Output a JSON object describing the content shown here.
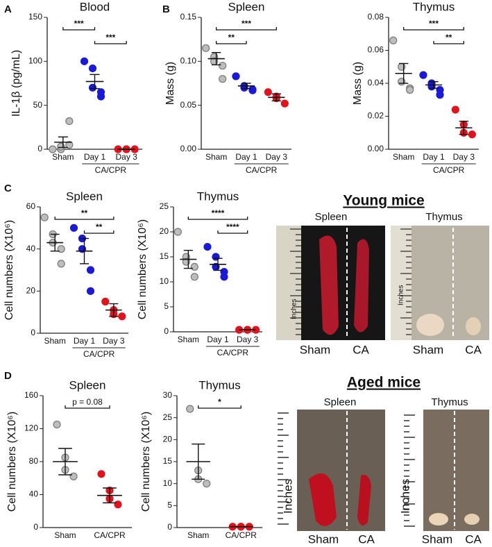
{
  "panel_labels": [
    "A",
    "B",
    "C",
    "D"
  ],
  "chart_data": [
    {
      "type": "dot",
      "title": "Blood",
      "y_label": "IL-1β (pg/mL)",
      "categories": [
        "Sham",
        "Day 1",
        "Day 3"
      ],
      "group_label": "CA/CPR",
      "colors": [
        "#bdbdbd",
        "#1a1ad6",
        "#e0141e"
      ],
      "points": [
        [
          0,
          0,
          3,
          5,
          32
        ],
        [
          100,
          92,
          70,
          65,
          60
        ],
        [
          0,
          0,
          0,
          0
        ]
      ],
      "means": [
        8,
        77,
        0
      ],
      "sems": [
        6,
        8,
        0
      ],
      "ylim": [
        0,
        150
      ],
      "yticks": [
        0,
        50,
        100,
        150
      ],
      "brackets": [
        {
          "between": [
            "Sham",
            "Day 1"
          ],
          "label": "***"
        },
        {
          "between": [
            "Day 1",
            "Day 3"
          ],
          "label": "***"
        }
      ]
    },
    {
      "type": "dot",
      "title": "Spleen",
      "y_label": "Mass (g)",
      "categories": [
        "Sham",
        "Day 1",
        "Day 3"
      ],
      "group_label": "CA/CPR",
      "colors": [
        "#bdbdbd",
        "#1a1ad6",
        "#e0141e"
      ],
      "points": [
        [
          0.115,
          0.105,
          0.1,
          0.095,
          0.08
        ],
        [
          0.083,
          0.072,
          0.07,
          0.068,
          0.067
        ],
        [
          0.065,
          0.06,
          0.058,
          0.052
        ]
      ],
      "means": [
        0.103,
        0.072,
        0.059
      ],
      "sems": [
        0.007,
        0.003,
        0.004
      ],
      "ylim": [
        0,
        0.15
      ],
      "yticks": [
        {
          "value": 0,
          "label": "0.00"
        },
        {
          "value": 0.05,
          "label": "0.05"
        },
        {
          "value": 0.1,
          "label": "0.10"
        },
        {
          "value": 0.15,
          "label": "0.15"
        }
      ],
      "brackets": [
        {
          "between": [
            "Sham",
            "Day 3"
          ],
          "label": "***"
        },
        {
          "between": [
            "Sham",
            "Day 1"
          ],
          "label": "**"
        }
      ]
    },
    {
      "type": "dot",
      "title": "Thymus",
      "y_label": "Mass (g)",
      "categories": [
        "Sham",
        "Day 1",
        "Day 3"
      ],
      "group_label": "CA/CPR",
      "colors": [
        "#bdbdbd",
        "#1a1ad6",
        "#e0141e"
      ],
      "points": [
        [
          0.066,
          0.05,
          0.041,
          0.037,
          0.036
        ],
        [
          0.045,
          0.04,
          0.038,
          0.036,
          0.033
        ],
        [
          0.024,
          0.015,
          0.01,
          0.009
        ]
      ],
      "means": [
        0.046,
        0.039,
        0.013
      ],
      "sems": [
        0.006,
        0.002,
        0.004
      ],
      "ylim": [
        0,
        0.08
      ],
      "yticks": [
        {
          "value": 0,
          "label": "0.00"
        },
        {
          "value": 0.02,
          "label": "0.02"
        },
        {
          "value": 0.04,
          "label": "0.04"
        },
        {
          "value": 0.06,
          "label": "0.06"
        },
        {
          "value": 0.08,
          "label": "0.08"
        }
      ],
      "brackets": [
        {
          "between": [
            "Sham",
            "Day 3"
          ],
          "label": "***"
        },
        {
          "between": [
            "Day 1",
            "Day 3"
          ],
          "label": "**"
        }
      ]
    },
    {
      "type": "dot",
      "title": "Spleen",
      "y_label": "Cell numbers (X10⁶)",
      "categories": [
        "Sham",
        "Day 1",
        "Day 3"
      ],
      "group_label": "CA/CPR",
      "colors": [
        "#bdbdbd",
        "#1a1ad6",
        "#e0141e"
      ],
      "points": [
        [
          55,
          47,
          43,
          40,
          33
        ],
        [
          50,
          45,
          40,
          30,
          20
        ],
        [
          15,
          11,
          9,
          8
        ]
      ],
      "means": [
        43,
        39,
        11
      ],
      "sems": [
        4,
        6,
        3
      ],
      "ylim": [
        0,
        60
      ],
      "yticks": [
        0,
        20,
        40,
        60
      ],
      "brackets": [
        {
          "between": [
            "Sham",
            "Day 3"
          ],
          "label": "**"
        },
        {
          "between": [
            "Day 1",
            "Day 3"
          ],
          "label": "**"
        }
      ]
    },
    {
      "type": "dot",
      "title": "Thymus",
      "y_label": "Cell numbers (X10⁶)",
      "categories": [
        "Sham",
        "Day 1",
        "Day 3"
      ],
      "group_label": "CA/CPR",
      "colors": [
        "#bdbdbd",
        "#1a1ad6",
        "#e0141e"
      ],
      "points": [
        [
          20,
          15,
          14,
          13,
          11
        ],
        [
          17,
          15,
          13,
          12,
          11
        ],
        [
          0.4,
          0.4,
          0.4,
          0.4
        ]
      ],
      "means": [
        14.5,
        13.5,
        0.4
      ],
      "sems": [
        1.8,
        1.2,
        0
      ],
      "ylim": [
        0,
        25
      ],
      "yticks": [
        0,
        5,
        10,
        15,
        20,
        25
      ],
      "brackets": [
        {
          "between": [
            "Sham",
            "Day 3"
          ],
          "label": "****"
        },
        {
          "between": [
            "Day 1",
            "Day 3"
          ],
          "label": "****"
        }
      ]
    },
    {
      "type": "dot",
      "title": "Spleen",
      "y_label": "Cell numbers (X10⁶)",
      "categories": [
        "Sham",
        "CA/CPR"
      ],
      "colors": [
        "#bdbdbd",
        "#e0141e"
      ],
      "points": [
        [
          125,
          85,
          70,
          62
        ],
        [
          65,
          45,
          35,
          28
        ]
      ],
      "means": [
        80,
        39
      ],
      "sems": [
        16,
        9
      ],
      "ylim": [
        0,
        160
      ],
      "yticks": [
        0,
        40,
        80,
        120,
        160
      ],
      "brackets": [
        {
          "between": [
            "Sham",
            "CA/CPR"
          ],
          "label": "p = 0.08"
        }
      ]
    },
    {
      "type": "dot",
      "title": "Thymus",
      "y_label": "Cell numbers (X10⁶)",
      "categories": [
        "Sham",
        "CA/CPR"
      ],
      "colors": [
        "#bdbdbd",
        "#e0141e"
      ],
      "points": [
        [
          27,
          13,
          11,
          10
        ],
        [
          0.2,
          0.2,
          0.2,
          0.2
        ]
      ],
      "means": [
        15,
        0.2
      ],
      "sems": [
        4,
        0
      ],
      "ylim": [
        0,
        30
      ],
      "yticks": [
        0,
        5,
        10,
        15,
        20,
        25,
        30
      ],
      "brackets": [
        {
          "between": [
            "Sham",
            "CA/CPR"
          ],
          "label": "*"
        }
      ]
    }
  ],
  "photos": [
    {
      "heading": "Young mice",
      "panels": [
        {
          "title": "Spleen",
          "ruler_label": "Inches",
          "groups": [
            "Sham",
            "CA"
          ]
        },
        {
          "title": "Thymus",
          "ruler_label": "Inches",
          "groups": [
            "Sham",
            "CA"
          ]
        }
      ]
    },
    {
      "heading": "Aged mice",
      "panels": [
        {
          "title": "Spleen",
          "ruler_label": "Inches",
          "groups": [
            "Sham",
            "CA"
          ]
        },
        {
          "title": "Thymus",
          "ruler_label": "Inches",
          "groups": [
            "Sham",
            "CA"
          ]
        }
      ]
    }
  ]
}
